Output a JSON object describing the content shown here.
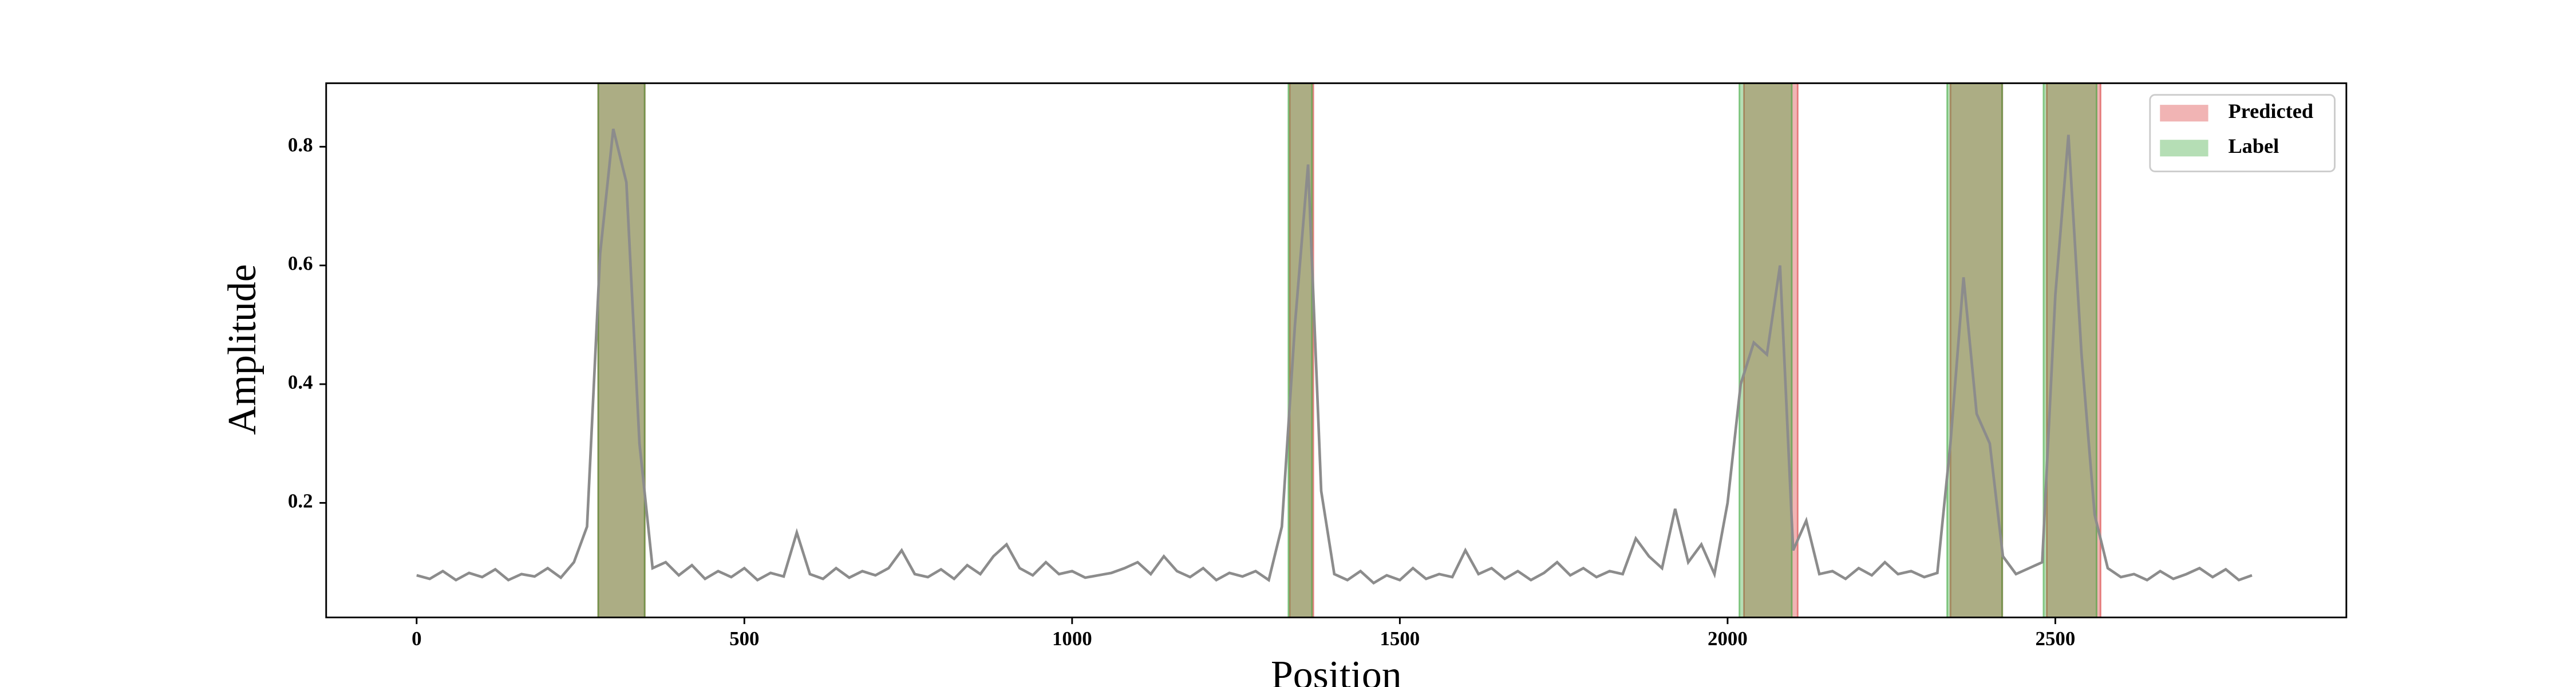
{
  "chart_data": {
    "type": "line",
    "xlabel": "Position",
    "ylabel": "Amplitude",
    "xlim": [
      -138,
      2944
    ],
    "ylim": [
      0.007,
      0.907
    ],
    "xticks": [
      0,
      500,
      1000,
      1500,
      2000,
      2500
    ],
    "yticks": [
      0.2,
      0.4,
      0.6,
      0.8
    ],
    "color": "#8c8c8c",
    "legend": "upper right",
    "spans": [
      {
        "name": "Predicted",
        "color": "#d62728",
        "ranges": [
          [
            277,
            348
          ],
          [
            1332,
            1368
          ],
          [
            2025,
            2107
          ],
          [
            2340,
            2419
          ],
          [
            2487,
            2569
          ]
        ]
      },
      {
        "name": "Label",
        "color": "#2ca02c",
        "ranges": [
          [
            277,
            348
          ],
          [
            1330,
            1366
          ],
          [
            2018,
            2098
          ],
          [
            2335,
            2419
          ],
          [
            2482,
            2563
          ]
        ]
      }
    ],
    "x": [
      0,
      20,
      40,
      60,
      80,
      100,
      120,
      140,
      160,
      180,
      200,
      220,
      240,
      260,
      280,
      300,
      320,
      340,
      360,
      380,
      400,
      420,
      440,
      460,
      480,
      500,
      520,
      540,
      560,
      580,
      600,
      620,
      640,
      660,
      680,
      700,
      720,
      740,
      760,
      780,
      800,
      820,
      840,
      860,
      880,
      900,
      920,
      940,
      960,
      980,
      1000,
      1020,
      1040,
      1060,
      1080,
      1100,
      1120,
      1140,
      1160,
      1180,
      1200,
      1220,
      1240,
      1260,
      1280,
      1300,
      1320,
      1340,
      1360,
      1380,
      1400,
      1420,
      1440,
      1460,
      1480,
      1500,
      1520,
      1540,
      1560,
      1580,
      1600,
      1620,
      1640,
      1660,
      1680,
      1700,
      1720,
      1740,
      1760,
      1780,
      1800,
      1820,
      1840,
      1860,
      1880,
      1900,
      1920,
      1940,
      1960,
      1980,
      2000,
      2020,
      2040,
      2060,
      2080,
      2100,
      2120,
      2140,
      2160,
      2180,
      2200,
      2220,
      2240,
      2260,
      2280,
      2300,
      2320,
      2340,
      2360,
      2380,
      2400,
      2420,
      2440,
      2460,
      2480,
      2500,
      2520,
      2540,
      2560,
      2580,
      2600,
      2620,
      2640,
      2660,
      2680,
      2700,
      2720,
      2740,
      2760,
      2780,
      2800
    ],
    "values": [
      0.078,
      0.072,
      0.085,
      0.07,
      0.082,
      0.075,
      0.088,
      0.07,
      0.08,
      0.076,
      0.09,
      0.074,
      0.1,
      0.16,
      0.62,
      0.83,
      0.74,
      0.3,
      0.09,
      0.1,
      0.078,
      0.095,
      0.072,
      0.085,
      0.075,
      0.09,
      0.07,
      0.082,
      0.076,
      0.15,
      0.08,
      0.072,
      0.09,
      0.074,
      0.085,
      0.078,
      0.09,
      0.12,
      0.08,
      0.075,
      0.088,
      0.072,
      0.095,
      0.08,
      0.11,
      0.13,
      0.09,
      0.078,
      0.1,
      0.08,
      0.085,
      0.074,
      0.078,
      0.082,
      0.09,
      0.1,
      0.08,
      0.11,
      0.085,
      0.075,
      0.09,
      0.07,
      0.082,
      0.076,
      0.085,
      0.07,
      0.16,
      0.5,
      0.77,
      0.22,
      0.08,
      0.07,
      0.085,
      0.065,
      0.078,
      0.07,
      0.09,
      0.072,
      0.08,
      0.075,
      0.12,
      0.08,
      0.09,
      0.072,
      0.085,
      0.07,
      0.082,
      0.1,
      0.078,
      0.09,
      0.075,
      0.085,
      0.08,
      0.14,
      0.11,
      0.09,
      0.19,
      0.1,
      0.13,
      0.08,
      0.2,
      0.4,
      0.47,
      0.45,
      0.6,
      0.12,
      0.17,
      0.08,
      0.085,
      0.072,
      0.09,
      0.078,
      0.1,
      0.08,
      0.085,
      0.075,
      0.082,
      0.3,
      0.58,
      0.35,
      0.3,
      0.11,
      0.08,
      0.09,
      0.1,
      0.55,
      0.82,
      0.45,
      0.18,
      0.09,
      0.075,
      0.08,
      0.07,
      0.085,
      0.072,
      0.08,
      0.09,
      0.075,
      0.088,
      0.07,
      0.078
    ]
  }
}
